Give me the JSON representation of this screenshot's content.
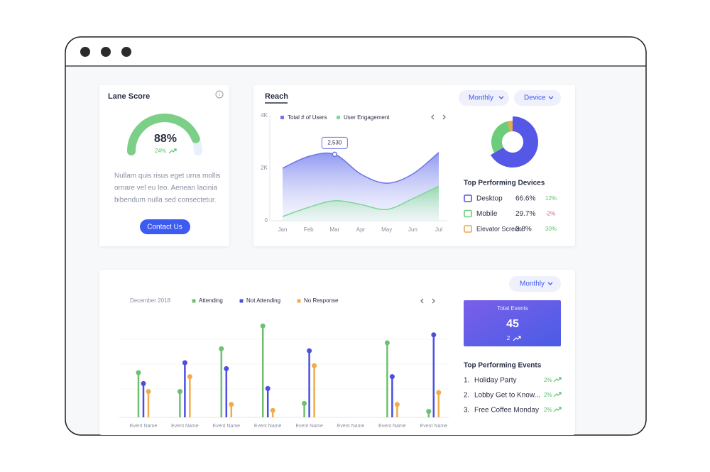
{
  "lane_score": {
    "title": "Lane Score",
    "score": 88,
    "score_label": "88%",
    "change": "24%",
    "description": [
      "Nullam quis risus eget urna mollis",
      "ornare vel eu leo. Aenean lacinia",
      "bibendum nulla sed consectetur."
    ],
    "button": "Contact Us"
  },
  "reach": {
    "title": "Reach",
    "filters": [
      "Monthly",
      "Device"
    ]
  },
  "devices": {
    "title": "Top Performing Devices",
    "changes": [
      "12%",
      "-2%",
      "30%"
    ]
  },
  "events": {
    "filter": "Monthly",
    "total_title": "Total Events",
    "total": 45,
    "total_change": 2,
    "list_title": "Top Performing Events",
    "items": [
      {
        "rank": "1.",
        "name": "Holiday Party",
        "change": "2%"
      },
      {
        "rank": "2.",
        "name": "Lobby Get to Know...",
        "change": "2%"
      },
      {
        "rank": "3.",
        "name": "Free Coffee Monday",
        "change": "2%"
      }
    ]
  },
  "chart_data": [
    {
      "type": "area",
      "categories": [
        "Jan",
        "Feb",
        "Mar",
        "Apr",
        "May",
        "Jun",
        "Jul"
      ],
      "series": [
        {
          "name": "Total # of Users",
          "color": "#6b74e8",
          "values": [
            2000,
            2450,
            2530,
            1780,
            1430,
            1780,
            2600
          ],
          "value_labels": [
            null,
            null,
            "2,530",
            null,
            null,
            null,
            null
          ]
        },
        {
          "name": "User Engagement",
          "color": "#7fd49a",
          "values": [
            160,
            510,
            760,
            620,
            430,
            840,
            1320
          ]
        }
      ],
      "ylim": [
        0,
        4000
      ],
      "yticks": [
        0,
        {
          "value": 2000,
          "label": "2K"
        },
        {
          "value": 4000,
          "label": "4K"
        }
      ]
    },
    {
      "type": "donut",
      "categories": [
        "Desktop",
        "Mobile",
        "Elevator Screen"
      ],
      "values": [
        66.6,
        29.7,
        3.8
      ],
      "value_labels": [
        "66.6%",
        "29.7%",
        "3.8%"
      ],
      "colors": [
        "#5558e6",
        "#6dcc7a",
        "#e8a94f"
      ]
    },
    {
      "type": "lollipop",
      "subtitle": "December 2018",
      "categories": [
        "Event Name",
        "Event Name",
        "Event Name",
        "Event Name",
        "Event Name",
        "Event Name",
        "Event Name",
        "Event Name"
      ],
      "series": [
        {
          "name": "Attending",
          "color": "#6cc070",
          "values": [
            45,
            26,
            69,
            92,
            14,
            null,
            75,
            6
          ]
        },
        {
          "name": "Not Attending",
          "color": "#4b4ee0",
          "values": [
            34,
            55,
            49,
            29,
            67,
            null,
            41,
            83
          ]
        },
        {
          "name": "No Response",
          "color": "#f0ac4a",
          "values": [
            26,
            41,
            13,
            7,
            52,
            null,
            13,
            25
          ]
        }
      ],
      "ylim": [
        0,
        100
      ]
    }
  ]
}
